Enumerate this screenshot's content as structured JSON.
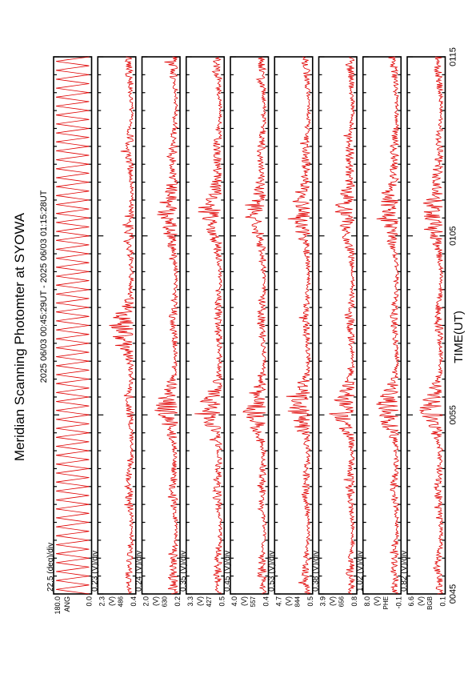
{
  "title": "Meridian Scanning Photomter at SYOWA",
  "time_range": "2025 06/03 00:45:29UT - 2025 06/03 01:15:28UT",
  "colors": {
    "trace": "#e00000",
    "axis": "#000000"
  },
  "chart_data": {
    "type": "line",
    "xlabel": "TIME(UT)",
    "x_range": [
      "0045",
      "0115"
    ],
    "x_ticks": [
      "0045",
      "0055",
      "0105",
      "0115"
    ],
    "panels": [
      {
        "scale_label": "22.5 (deg)/div",
        "y_top": "180.0",
        "y_bottom": "0.0",
        "y_unit": "ANG",
        "kind": "scan"
      },
      {
        "scale_label": "0.23 (V)/div",
        "y_top": "2.3",
        "y_bottom": "0.4",
        "y_unit": "(V)",
        "y_code": "486",
        "kind": "signal",
        "bursts": [
          0.49
        ]
      },
      {
        "scale_label": "0.24 (V)/div",
        "y_top": "2.0",
        "y_bottom": "0.2",
        "y_unit": "(V)",
        "y_code": "630",
        "kind": "signal",
        "bursts": [
          0.34,
          0.72
        ]
      },
      {
        "scale_label": "0.35 (V)/div",
        "y_top": "3.3",
        "y_bottom": "0.5",
        "y_unit": "(V)",
        "y_code": "427",
        "kind": "signal",
        "bursts": [
          0.34,
          0.72
        ]
      },
      {
        "scale_label": "0.45 (V)/div",
        "y_top": "4.0",
        "y_bottom": "0.4",
        "y_unit": "(V)",
        "y_code": "557",
        "kind": "signal",
        "bursts": [
          0.34,
          0.72
        ]
      },
      {
        "scale_label": "0.53 (V)/div",
        "y_top": "4.7",
        "y_bottom": "0.5",
        "y_unit": "(V)",
        "y_code": "844",
        "kind": "signal",
        "bursts": [
          0.34,
          0.72
        ]
      },
      {
        "scale_label": "0.38 (V)/div",
        "y_top": "3.9",
        "y_bottom": "0.8",
        "y_unit": "(V)",
        "y_code": "656",
        "kind": "signal",
        "bursts": [
          0.34,
          0.72
        ]
      },
      {
        "scale_label": "1.02 (V)/div",
        "y_top": "8.0",
        "y_bottom": "-0.1",
        "y_unit": "(V)",
        "y_code": "PHE",
        "kind": "signal",
        "bursts": [
          0.34,
          0.72
        ]
      },
      {
        "scale_label": "0.82 (V)/div",
        "y_top": "6.6",
        "y_bottom": "0.1",
        "y_unit": "(V)",
        "y_code": "BGB",
        "kind": "signal",
        "bursts": [
          0.34,
          0.72
        ]
      }
    ]
  }
}
